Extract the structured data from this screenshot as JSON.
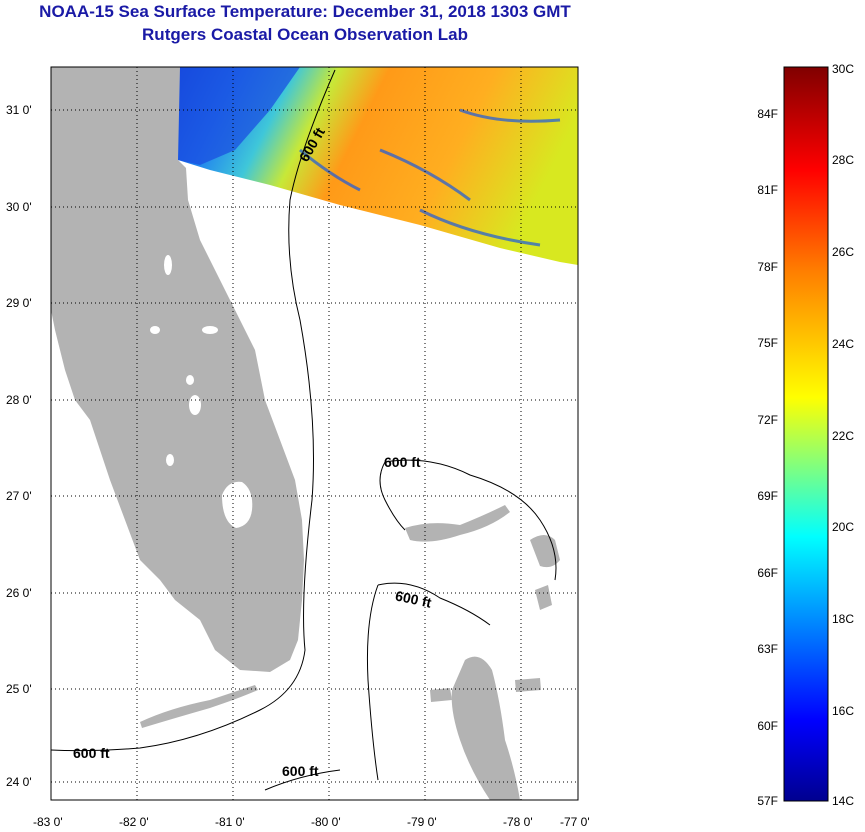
{
  "header": {
    "title": "NOAA-15 Sea Surface Temperature:  December 31, 2018 1303 GMT",
    "subtitle": "Rutgers Coastal Ocean Observation Lab"
  },
  "map": {
    "lon_labels": [
      "-83 0'",
      "-82 0'",
      "-81 0'",
      "-80 0'",
      "-79 0'",
      "-78 0'",
      "-77 0'"
    ],
    "lat_labels": [
      "31 0'",
      "30 0'",
      "29 0'",
      "28 0'",
      "27 0'",
      "26 0'",
      "25 0'",
      "24 0'"
    ],
    "contour_labels": [
      "600 ft",
      "600 ft",
      "600 ft",
      "600 ft",
      "600 ft"
    ],
    "land_color": "#b3b3b3",
    "grid": "dotted"
  },
  "colorbar": {
    "fahrenheit_labels": [
      "84F",
      "81F",
      "78F",
      "75F",
      "72F",
      "69F",
      "66F",
      "63F",
      "60F",
      "57F"
    ],
    "celsius_labels": [
      "30C",
      "28C",
      "26C",
      "24C",
      "22C",
      "20C",
      "18C",
      "16C",
      "14C"
    ],
    "range_c": [
      14,
      30
    ]
  }
}
